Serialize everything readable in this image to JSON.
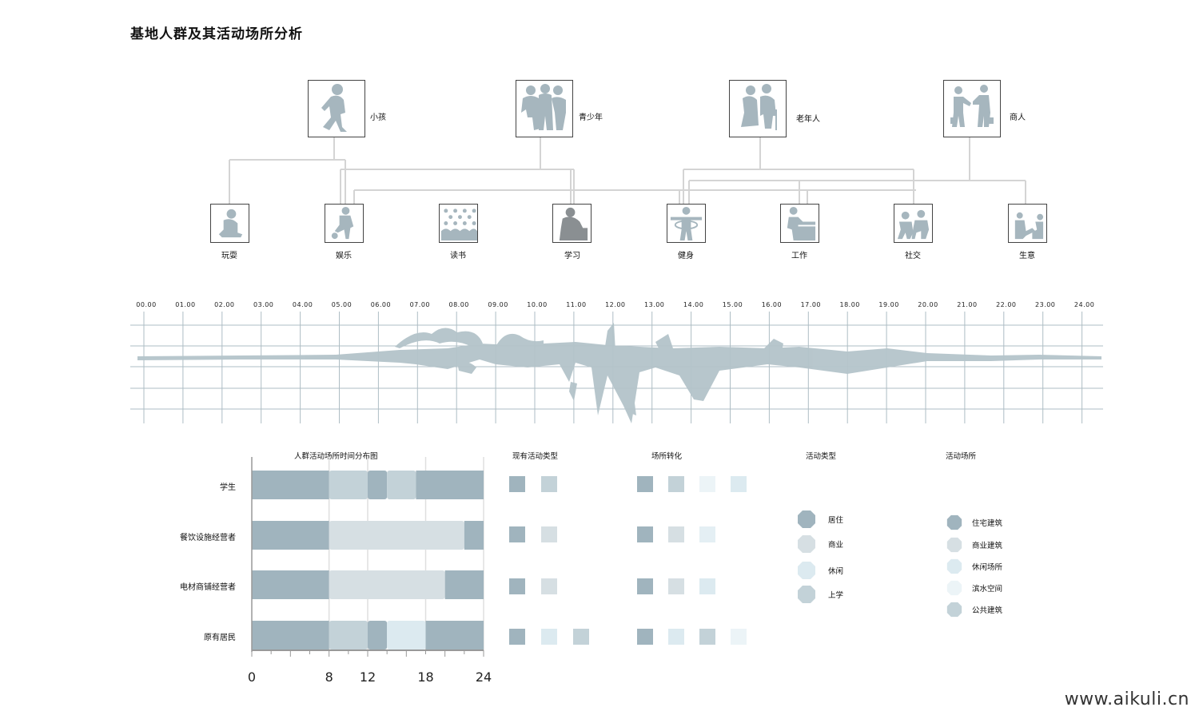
{
  "title": "基地人群及其活动场所分析",
  "groups": [
    {
      "label": "小孩",
      "icon": "child-silhouette-icon"
    },
    {
      "label": "青少年",
      "icon": "teenagers-silhouette-icon"
    },
    {
      "label": "老年人",
      "icon": "elderly-couple-silhouette-icon"
    },
    {
      "label": "商人",
      "icon": "businessmen-handshake-icon"
    }
  ],
  "activities": [
    {
      "label": "玩耍",
      "icon": "play-icon"
    },
    {
      "label": "娱乐",
      "icon": "entertainment-icon"
    },
    {
      "label": "读书",
      "icon": "reading-icon"
    },
    {
      "label": "学习",
      "icon": "study-icon"
    },
    {
      "label": "健身",
      "icon": "fitness-icon"
    },
    {
      "label": "工作",
      "icon": "work-icon"
    },
    {
      "label": "社交",
      "icon": "social-icon"
    },
    {
      "label": "生意",
      "icon": "business-icon"
    }
  ],
  "timeline": {
    "ticks": [
      "00.00",
      "01.00",
      "02.00",
      "03.00",
      "04.00",
      "05.00",
      "06.00",
      "07.00",
      "08.00",
      "09.00",
      "10.00",
      "11.00",
      "12.00",
      "13.00",
      "14.00",
      "15.00",
      "16.00",
      "17.00",
      "18.00",
      "19.00",
      "20.00",
      "21.00",
      "22.00",
      "23.00",
      "24.00"
    ]
  },
  "chart_data": {
    "type": "bar",
    "title": "人群活动场所时间分布图",
    "categories": [
      "学生",
      "餐饮设施经营者",
      "电材商铺经营者",
      "原有居民"
    ],
    "xlim": [
      0,
      24
    ],
    "xticks": [
      "0",
      "8",
      "12",
      "18",
      "24"
    ],
    "segments": [
      [
        {
          "start": 0,
          "end": 8,
          "color": "#a0b4be"
        },
        {
          "start": 8,
          "end": 12,
          "color": "#c3d2d8"
        },
        {
          "start": 12,
          "end": 14,
          "color": "#a0b4be"
        },
        {
          "start": 14,
          "end": 17,
          "color": "#c3d2d8"
        },
        {
          "start": 17,
          "end": 24,
          "color": "#a0b4be"
        }
      ],
      [
        {
          "start": 0,
          "end": 8,
          "color": "#a0b4be"
        },
        {
          "start": 8,
          "end": 22,
          "color": "#d6dfe3"
        },
        {
          "start": 22,
          "end": 24,
          "color": "#a0b4be"
        }
      ],
      [
        {
          "start": 0,
          "end": 8,
          "color": "#a0b4be"
        },
        {
          "start": 8,
          "end": 20,
          "color": "#d6dfe3"
        },
        {
          "start": 20,
          "end": 24,
          "color": "#a0b4be"
        }
      ],
      [
        {
          "start": 0,
          "end": 8,
          "color": "#a0b4be"
        },
        {
          "start": 8,
          "end": 12,
          "color": "#c3d2d8"
        },
        {
          "start": 12,
          "end": 14,
          "color": "#a0b4be"
        },
        {
          "start": 14,
          "end": 18,
          "color": "#dceaf0"
        },
        {
          "start": 18,
          "end": 24,
          "color": "#a0b4be"
        }
      ]
    ]
  },
  "current_types": {
    "title": "现有活动类型",
    "rows": [
      [
        "#a0b4be",
        "#c3d2d8"
      ],
      [
        "#a0b4be",
        "#d6dfe3"
      ],
      [
        "#a0b4be",
        "#d6dfe3"
      ],
      [
        "#a0b4be",
        "#dceaf0",
        "#c3d2d8"
      ]
    ]
  },
  "place_transform": {
    "title": "场所转化",
    "rows": [
      [
        "#a0b4be",
        "#c3d2d8",
        "#ecf4f7",
        "#dceaf0"
      ],
      [
        "#a0b4be",
        "#d6dfe3",
        "#e4eff4"
      ],
      [
        "#a0b4be",
        "#d6dfe3",
        "#dceaf0"
      ],
      [
        "#a0b4be",
        "#dceaf0",
        "#c3d2d8",
        "#ecf4f7"
      ]
    ]
  },
  "activity_legend": {
    "title": "活动类型",
    "items": [
      {
        "label": "居住",
        "color": "#a0b4be"
      },
      {
        "label": "商业",
        "color": "#d6dfe3"
      },
      {
        "label": "休闲",
        "color": "#dceaf0"
      },
      {
        "label": "上学",
        "color": "#c3d2d8"
      }
    ]
  },
  "place_legend": {
    "title": "活动场所",
    "items": [
      {
        "label": "住宅建筑",
        "color": "#a0b4be"
      },
      {
        "label": "商业建筑",
        "color": "#d6dfe3"
      },
      {
        "label": "休闲场所",
        "color": "#dceaf0"
      },
      {
        "label": "滨水空间",
        "color": "#ecf4f7"
      },
      {
        "label": "公共建筑",
        "color": "#c3d2d8"
      }
    ]
  },
  "watermark": "www.aikuli.cn"
}
